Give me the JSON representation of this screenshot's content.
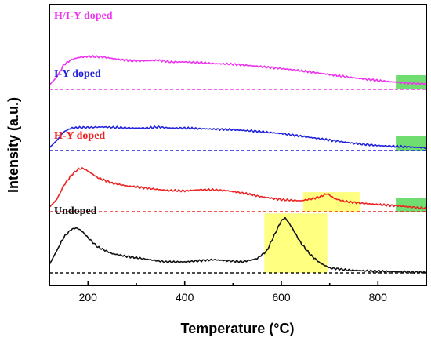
{
  "chart_data": {
    "type": "line",
    "xlabel": "Temperature (°C)",
    "ylabel": "Intensity (a.u.)",
    "xlim": [
      120,
      900
    ],
    "xticks": [
      200,
      400,
      600,
      800
    ],
    "xtick_labels": [
      "200",
      "400",
      "600",
      "800"
    ],
    "y_ticks_shown": false,
    "grid": false,
    "series": [
      {
        "name": "H/I-Y doped",
        "color": "#ee33ee",
        "baseline_offset": 3.0,
        "x": [
          120,
          135,
          150,
          165,
          180,
          200,
          230,
          260,
          290,
          320,
          345,
          370,
          400,
          430,
          460,
          500,
          550,
          600,
          650,
          700,
          750,
          800,
          850,
          900
        ],
        "y": [
          0.08,
          0.22,
          0.45,
          0.54,
          0.58,
          0.6,
          0.59,
          0.55,
          0.52,
          0.52,
          0.53,
          0.5,
          0.5,
          0.49,
          0.47,
          0.46,
          0.42,
          0.38,
          0.33,
          0.27,
          0.21,
          0.16,
          0.12,
          0.1
        ]
      },
      {
        "name": "I-Y doped",
        "color": "#2222dd",
        "baseline_offset": 2.0,
        "x": [
          120,
          135,
          150,
          165,
          180,
          200,
          230,
          260,
          290,
          320,
          345,
          370,
          400,
          430,
          460,
          500,
          550,
          600,
          650,
          700,
          750,
          800,
          850,
          900
        ],
        "y": [
          0.05,
          0.18,
          0.34,
          0.41,
          0.42,
          0.42,
          0.43,
          0.42,
          0.41,
          0.41,
          0.43,
          0.41,
          0.41,
          0.4,
          0.39,
          0.38,
          0.35,
          0.31,
          0.25,
          0.19,
          0.13,
          0.09,
          0.07,
          0.05
        ]
      },
      {
        "name": "H-Y doped",
        "color": "#ee2222",
        "baseline_offset": 1.0,
        "x": [
          120,
          135,
          150,
          165,
          180,
          190,
          200,
          220,
          250,
          280,
          320,
          360,
          400,
          430,
          460,
          490,
          520,
          560,
          600,
          640,
          660,
          680,
          695,
          710,
          730,
          760,
          800,
          850,
          900
        ],
        "y": [
          0.08,
          0.22,
          0.48,
          0.66,
          0.78,
          0.79,
          0.74,
          0.62,
          0.52,
          0.47,
          0.43,
          0.39,
          0.38,
          0.4,
          0.4,
          0.38,
          0.34,
          0.27,
          0.22,
          0.2,
          0.23,
          0.27,
          0.33,
          0.24,
          0.19,
          0.16,
          0.13,
          0.1,
          0.06
        ]
      },
      {
        "name": "Undoped",
        "color": "#111111",
        "baseline_offset": 0.0,
        "x": [
          120,
          135,
          150,
          165,
          175,
          185,
          200,
          220,
          250,
          280,
          320,
          360,
          400,
          430,
          460,
          490,
          520,
          550,
          570,
          585,
          600,
          608,
          615,
          625,
          640,
          660,
          680,
          700,
          740,
          800,
          850,
          900
        ],
        "y": [
          0.15,
          0.4,
          0.65,
          0.79,
          0.82,
          0.78,
          0.64,
          0.47,
          0.35,
          0.3,
          0.25,
          0.2,
          0.2,
          0.22,
          0.24,
          0.22,
          0.2,
          0.26,
          0.4,
          0.68,
          0.95,
          1.0,
          0.92,
          0.78,
          0.55,
          0.33,
          0.18,
          0.09,
          0.05,
          0.03,
          0.02,
          0.01
        ]
      }
    ],
    "highlights": [
      {
        "color": "#ffff80",
        "x": [
          565,
          695
        ],
        "series": "Undoped"
      },
      {
        "color": "#ffff80",
        "x": [
          645,
          762
        ],
        "series": "H-Y doped"
      },
      {
        "color": "#6fdd6f",
        "x": [
          837,
          900
        ],
        "series": "H/I-Y doped"
      },
      {
        "color": "#6fdd6f",
        "x": [
          837,
          900
        ],
        "series": "I-Y doped"
      },
      {
        "color": "#6fdd6f",
        "x": [
          837,
          900
        ],
        "series": "H-Y doped"
      }
    ]
  }
}
